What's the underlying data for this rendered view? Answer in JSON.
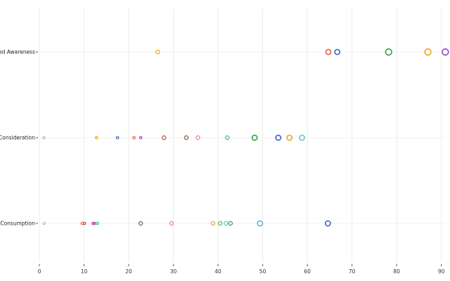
{
  "chart_data": {
    "type": "scatter",
    "title": "",
    "xlabel": "",
    "ylabel": "",
    "xlim": [
      0,
      91
    ],
    "xticks": [
      0,
      10,
      20,
      30,
      40,
      50,
      60,
      70,
      80,
      90
    ],
    "categories": [
      "Unaided Awareness",
      "Consideration",
      "Past Month Consumption"
    ],
    "grid": true,
    "legend": "none",
    "series": [
      {
        "category": "Unaided Awareness",
        "points": [
          {
            "x": 26.5,
            "color": "#e6a800",
            "size": "small"
          },
          {
            "x": 64.7,
            "color": "#ef5a43",
            "size": "medium"
          },
          {
            "x": 66.7,
            "color": "#3a63c9",
            "size": "medium"
          },
          {
            "x": 78.2,
            "color": "#2fa33a",
            "size": "large"
          },
          {
            "x": 87.0,
            "color": "#f4a21a",
            "size": "large"
          },
          {
            "x": 90.9,
            "color": "#9b3dd4",
            "size": "large"
          }
        ]
      },
      {
        "category": "Consideration",
        "points": [
          {
            "x": 1.0,
            "color": "#bbbbbb",
            "size": "tiny"
          },
          {
            "x": 12.8,
            "color": "#e6a800",
            "size": "tiny"
          },
          {
            "x": 17.5,
            "color": "#3a63c9",
            "size": "tiny"
          },
          {
            "x": 21.2,
            "color": "#ef5a43",
            "size": "tiny"
          },
          {
            "x": 22.7,
            "color": "#9b3dd4",
            "size": "tiny"
          },
          {
            "x": 27.9,
            "color": "#c94a2a",
            "size": "small"
          },
          {
            "x": 32.9,
            "color": "#8a5a2c",
            "size": "small"
          },
          {
            "x": 35.5,
            "color": "#f07aa3",
            "size": "small"
          },
          {
            "x": 42.1,
            "color": "#3dbb6a",
            "size": "small"
          },
          {
            "x": 48.2,
            "color": "#2fa33a",
            "size": "medium"
          },
          {
            "x": 53.5,
            "color": "#3a63c9",
            "size": "medium"
          },
          {
            "x": 56.0,
            "color": "#f4a21a",
            "size": "medium"
          },
          {
            "x": 58.8,
            "color": "#6cc1c9",
            "size": "medium"
          }
        ]
      },
      {
        "category": "Past Month Consumption",
        "points": [
          {
            "x": 1.1,
            "color": "#bbbbbb",
            "size": "tiny"
          },
          {
            "x": 9.6,
            "color": "#ef5a43",
            "size": "tiny"
          },
          {
            "x": 10.1,
            "color": "#c94a2a",
            "size": "tiny"
          },
          {
            "x": 12.0,
            "color": "#ef5a43",
            "size": "tiny"
          },
          {
            "x": 12.3,
            "color": "#9b3dd4",
            "size": "tiny"
          },
          {
            "x": 13.0,
            "color": "#3dbb6a",
            "size": "tiny"
          },
          {
            "x": 22.7,
            "color": "#8a5a2c",
            "size": "small"
          },
          {
            "x": 29.6,
            "color": "#f07aa3",
            "size": "small"
          },
          {
            "x": 38.9,
            "color": "#f4a21a",
            "size": "small"
          },
          {
            "x": 40.5,
            "color": "#3dbb6a",
            "size": "small"
          },
          {
            "x": 41.8,
            "color": "#6cc1c9",
            "size": "small"
          },
          {
            "x": 42.8,
            "color": "#2fa33a",
            "size": "small"
          },
          {
            "x": 49.4,
            "color": "#6aaedc",
            "size": "medium"
          },
          {
            "x": 64.6,
            "color": "#3a63c9",
            "size": "medium"
          }
        ]
      }
    ]
  }
}
